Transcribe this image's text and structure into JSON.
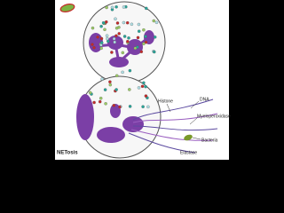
{
  "labels": {
    "netosis": "NETosis",
    "histone": "Histone",
    "dna": "DNA",
    "myeloperoxidase": "Myeloperoxidase",
    "bacteria": "Bacteria",
    "elastase": "Elastase"
  }
}
